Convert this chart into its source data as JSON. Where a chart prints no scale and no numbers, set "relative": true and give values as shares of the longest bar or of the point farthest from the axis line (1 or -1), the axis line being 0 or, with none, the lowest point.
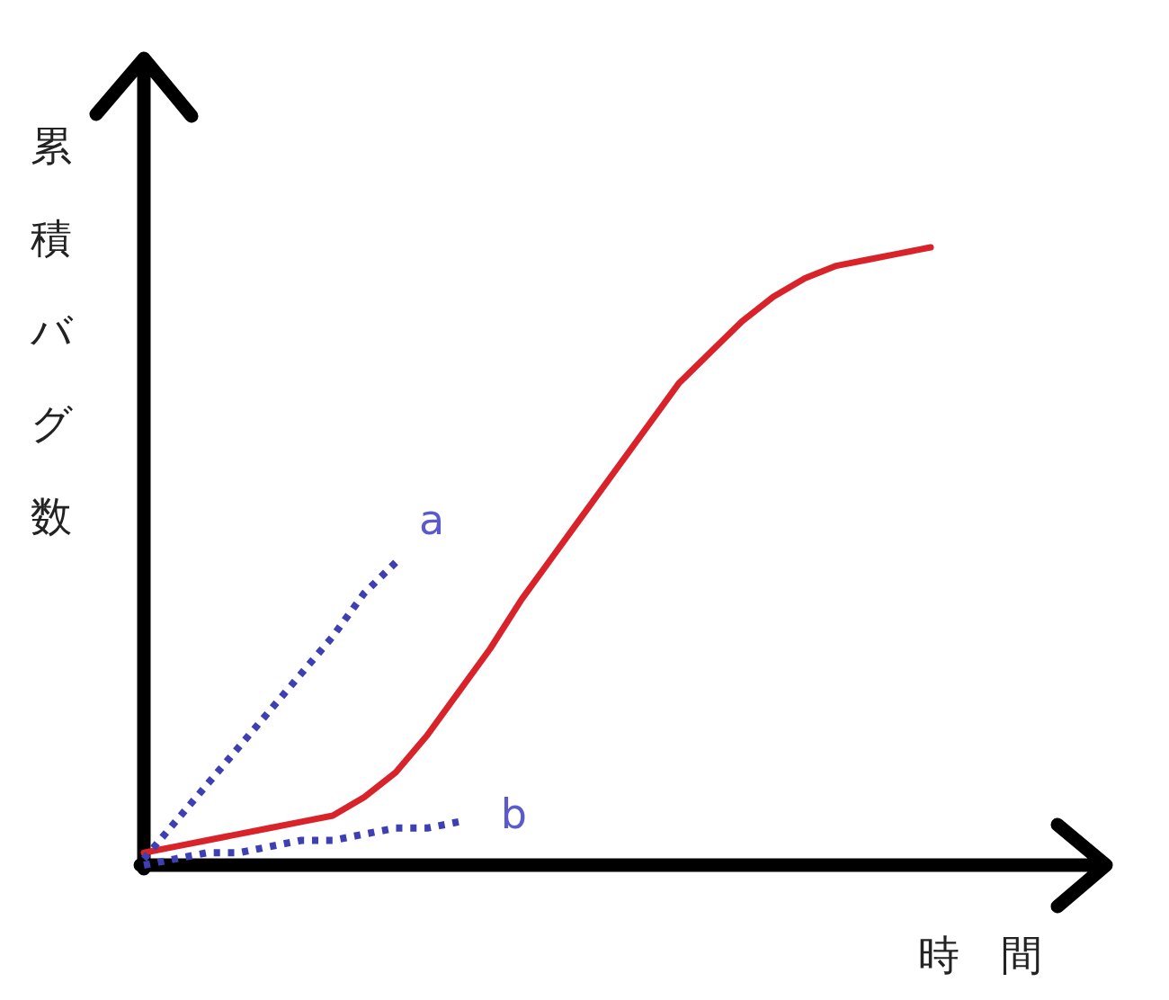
{
  "chart_data": {
    "type": "line",
    "relative": true,
    "xlabel": "時　間",
    "ylabel": "累積バグ数",
    "categories": [
      null,
      null,
      null,
      null,
      null,
      null,
      null,
      null,
      null,
      null,
      null,
      null,
      null,
      null,
      null,
      null,
      null,
      null,
      null,
      null,
      null,
      null,
      null,
      null,
      null,
      null
    ],
    "series": [
      {
        "color": "#d8232a",
        "line_style": "solid",
        "values": [
          0.02,
          0.03,
          0.04,
          0.05,
          0.06,
          0.07,
          0.08,
          0.11,
          0.15,
          0.21,
          0.28,
          0.35,
          0.43,
          0.5,
          0.57,
          0.64,
          0.71,
          0.78,
          0.83,
          0.88,
          0.92,
          0.95,
          0.97,
          0.98,
          0.99,
          1.0
        ]
      },
      {
        "name": "a",
        "color": "#3f3fb4",
        "line_style": "dotted",
        "values": [
          0.01,
          0.07,
          0.13,
          0.19,
          0.25,
          0.31,
          0.37,
          0.44,
          0.49,
          null,
          null,
          null,
          null,
          null,
          null,
          null,
          null,
          null,
          null,
          null,
          null,
          null,
          null,
          null,
          null,
          null
        ]
      },
      {
        "name": "b",
        "color": "#3f3fb4",
        "line_style": "dotted",
        "values": [
          0.0,
          0.01,
          0.02,
          0.02,
          0.03,
          0.04,
          0.04,
          0.05,
          0.06,
          0.06,
          0.07,
          null,
          null,
          null,
          null,
          null,
          null,
          null,
          null,
          null,
          null,
          null,
          null,
          null,
          null,
          null
        ]
      }
    ]
  }
}
